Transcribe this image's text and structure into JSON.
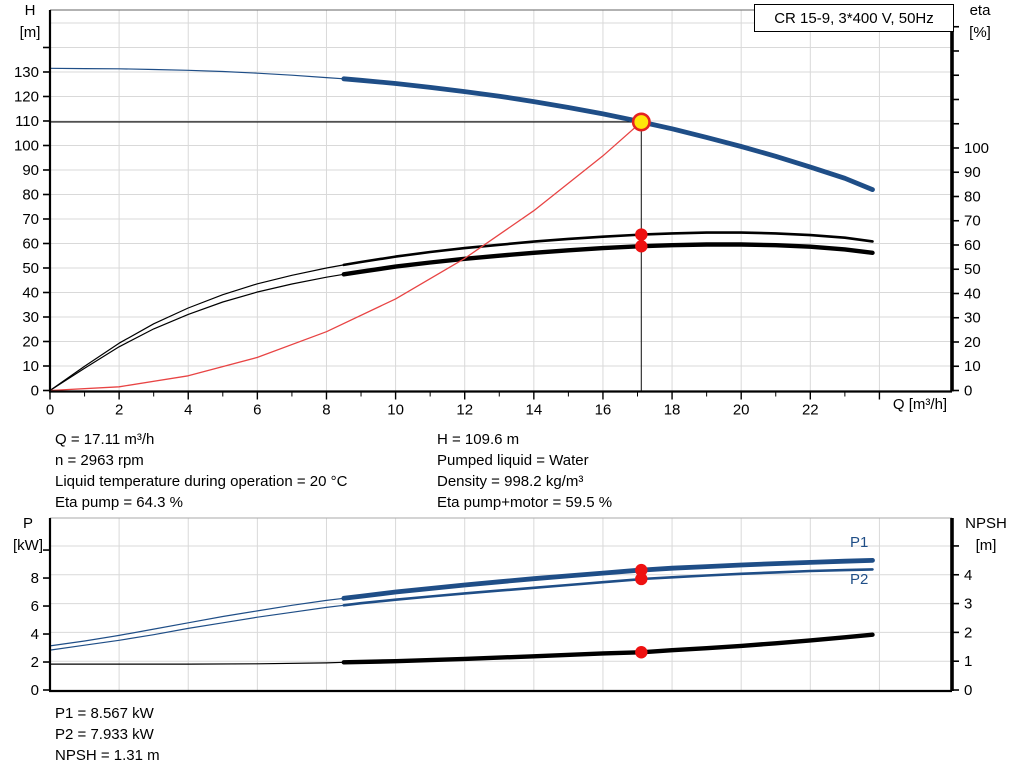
{
  "title_box": {
    "label": "CR 15-9, 3*400 V, 50Hz"
  },
  "axes": {
    "head_title": "H",
    "head_unit": "[m]",
    "eta_title": "eta",
    "eta_unit": "[%]",
    "flow_title": "Q [m³/h]",
    "power_title": "P",
    "power_unit": "[kW]",
    "npsh_title": "NPSH",
    "npsh_unit": "[m]"
  },
  "curve_labels": {
    "p1": "P1",
    "p2": "P2"
  },
  "operating_point": {
    "col_left": [
      "Q = 17.11 m³/h",
      "n = 2963 rpm",
      "Liquid temperature during operation = 20 °C",
      "Eta pump = 64.3 %"
    ],
    "col_right": [
      "H = 109.6 m",
      "Pumped liquid = Water",
      "Density = 998.2 kg/m³",
      "Eta pump+motor = 59.5 %"
    ]
  },
  "power_block": [
    "P1 = 8.567 kW",
    "P2 = 7.933 kW",
    "NPSH = 1.31 m"
  ],
  "colors": {
    "curve_blue": "#1F4E87",
    "curve_black": "#000000",
    "system_red": "#E84444",
    "duty_red": "#EE1111",
    "duty_yellow": "#FFE60A",
    "duty_ring": "#E42222",
    "grid": "#D9D9D9",
    "frame": "#777777"
  },
  "chart_data": [
    {
      "type": "line",
      "title": "CR 15-9, 3*400 V, 50Hz",
      "x_axis": {
        "label": "Q [m³/h]",
        "range": [
          0,
          26.1
        ],
        "labeled_ticks": [
          0,
          2,
          4,
          6,
          8,
          10,
          12,
          14,
          16,
          18,
          20,
          22
        ],
        "unlabeled_ticks": [
          24
        ],
        "minor_ticks": [
          1,
          3,
          5,
          7,
          9,
          11,
          13,
          15,
          17,
          19,
          21,
          23
        ]
      },
      "y_left": {
        "label": "H [m]",
        "range": [
          0,
          155.3
        ],
        "labeled_ticks": [
          0,
          10,
          20,
          30,
          40,
          50,
          60,
          70,
          80,
          90,
          100,
          110,
          120,
          130
        ],
        "unlabeled_ticks": [
          140
        ]
      },
      "y_right": {
        "label": "eta [%]",
        "range": [
          0,
          156.9
        ],
        "labeled_ticks": [
          0,
          10,
          20,
          30,
          40,
          50,
          60,
          70,
          80,
          90,
          100
        ],
        "unlabeled_ticks": [
          110,
          120,
          130,
          140,
          150
        ]
      },
      "duty_point": {
        "q": 17.11,
        "h": 109.6,
        "eta_pump": 64.3,
        "eta_pump_motor": 59.5
      },
      "series": [
        {
          "name": "head-curve",
          "axis": "left",
          "color": "#1F4E87",
          "thick_from": 8.5,
          "thick_width": 4.8,
          "points": [
            [
              0,
              131.5
            ],
            [
              1,
              131.4
            ],
            [
              2,
              131.3
            ],
            [
              3,
              131.0
            ],
            [
              4,
              130.7
            ],
            [
              5,
              130.2
            ],
            [
              6,
              129.5
            ],
            [
              7,
              128.7
            ],
            [
              8,
              127.7
            ],
            [
              8.5,
              127.2
            ],
            [
              9,
              126.6
            ],
            [
              10,
              125.3
            ],
            [
              11,
              123.7
            ],
            [
              12,
              122.0
            ],
            [
              13,
              120.1
            ],
            [
              14,
              117.9
            ],
            [
              15,
              115.5
            ],
            [
              16,
              112.9
            ],
            [
              17,
              110.0
            ],
            [
              17.11,
              109.6
            ],
            [
              18,
              106.8
            ],
            [
              19,
              103.3
            ],
            [
              20,
              99.6
            ],
            [
              21,
              95.6
            ],
            [
              22,
              91.2
            ],
            [
              23,
              86.6
            ],
            [
              23.8,
              82.0
            ]
          ]
        },
        {
          "name": "eta-pump-curve",
          "axis": "right",
          "color": "#000000",
          "thick_from": 8.5,
          "thick_width": 2.6,
          "points": [
            [
              0,
              0
            ],
            [
              1,
              10
            ],
            [
              2,
              19.5
            ],
            [
              3,
              27.5
            ],
            [
              4,
              34
            ],
            [
              5,
              39.5
            ],
            [
              6,
              44
            ],
            [
              7,
              47.5
            ],
            [
              8,
              50.5
            ],
            [
              8.5,
              51.8
            ],
            [
              9,
              53
            ],
            [
              10,
              55.2
            ],
            [
              11,
              57.1
            ],
            [
              12,
              58.7
            ],
            [
              13,
              60.1
            ],
            [
              14,
              61.4
            ],
            [
              15,
              62.5
            ],
            [
              16,
              63.4
            ],
            [
              17,
              64.2
            ],
            [
              17.11,
              64.3
            ],
            [
              18,
              64.8
            ],
            [
              19,
              65.1
            ],
            [
              20,
              65.1
            ],
            [
              21,
              64.8
            ],
            [
              22,
              64.1
            ],
            [
              23,
              63.0
            ],
            [
              23.8,
              61.5
            ]
          ]
        },
        {
          "name": "eta-pump-motor-curve",
          "axis": "right",
          "color": "#000000",
          "thick_from": 8.5,
          "thick_width": 4.4,
          "points": [
            [
              0,
              0
            ],
            [
              1,
              9.2
            ],
            [
              2,
              18
            ],
            [
              3,
              25.4
            ],
            [
              4,
              31.4
            ],
            [
              5,
              36.5
            ],
            [
              6,
              40.6
            ],
            [
              7,
              43.9
            ],
            [
              8,
              46.7
            ],
            [
              8.5,
              47.9
            ],
            [
              9,
              49
            ],
            [
              10,
              51.1
            ],
            [
              11,
              52.8
            ],
            [
              12,
              54.3
            ],
            [
              13,
              55.6
            ],
            [
              14,
              56.8
            ],
            [
              15,
              57.8
            ],
            [
              16,
              58.7
            ],
            [
              17,
              59.4
            ],
            [
              17.11,
              59.5
            ],
            [
              18,
              59.9
            ],
            [
              19,
              60.2
            ],
            [
              20,
              60.2
            ],
            [
              21,
              59.9
            ],
            [
              22,
              59.3
            ],
            [
              23,
              58.2
            ],
            [
              23.8,
              56.8
            ]
          ]
        },
        {
          "name": "system-curve",
          "axis": "left",
          "color": "#E84444",
          "thick_width": 1.3,
          "points": [
            [
              0,
              0
            ],
            [
              2,
              1.5
            ],
            [
              4,
              6.0
            ],
            [
              6,
              13.5
            ],
            [
              8,
              24.0
            ],
            [
              10,
              37.4
            ],
            [
              12,
              53.9
            ],
            [
              14,
              73.4
            ],
            [
              16,
              95.8
            ],
            [
              17.11,
              109.6
            ]
          ]
        }
      ]
    },
    {
      "type": "line",
      "x_axis": {
        "label": "",
        "range": [
          0,
          26.1
        ]
      },
      "y_left": {
        "label": "P [kW]",
        "range": [
          0,
          12.29
        ],
        "labeled_ticks": [
          0,
          2,
          4,
          6,
          8
        ],
        "unlabeled_ticks": [
          10
        ]
      },
      "y_right": {
        "label": "NPSH [m]",
        "range": [
          0,
          5.97
        ],
        "labeled_ticks": [
          0,
          1,
          2,
          3,
          4
        ],
        "unlabeled_ticks": [
          5
        ]
      },
      "duty_point": {
        "q": 17.11,
        "p1": 8.567,
        "p2": 7.933,
        "npsh": 1.31
      },
      "series": [
        {
          "name": "p1-curve",
          "axis": "left",
          "color": "#1F4E87",
          "thick_from": 8.5,
          "thick_width": 4.8,
          "points": [
            [
              0,
              3.15
            ],
            [
              1,
              3.5
            ],
            [
              2,
              3.9
            ],
            [
              3,
              4.35
            ],
            [
              4,
              4.8
            ],
            [
              5,
              5.25
            ],
            [
              6,
              5.65
            ],
            [
              7,
              6.05
            ],
            [
              8,
              6.4
            ],
            [
              8.5,
              6.55
            ],
            [
              9,
              6.7
            ],
            [
              10,
              7.0
            ],
            [
              11,
              7.25
            ],
            [
              12,
              7.5
            ],
            [
              13,
              7.73
            ],
            [
              14,
              7.95
            ],
            [
              15,
              8.15
            ],
            [
              16,
              8.35
            ],
            [
              17,
              8.55
            ],
            [
              17.11,
              8.567
            ],
            [
              18,
              8.7
            ],
            [
              19,
              8.82
            ],
            [
              20,
              8.93
            ],
            [
              21,
              9.03
            ],
            [
              22,
              9.12
            ],
            [
              23,
              9.2
            ],
            [
              23.8,
              9.26
            ]
          ]
        },
        {
          "name": "p2-curve",
          "axis": "left",
          "color": "#1F4E87",
          "thick_from": 8.5,
          "thick_width": 2.6,
          "points": [
            [
              0,
              2.85
            ],
            [
              1,
              3.2
            ],
            [
              2,
              3.55
            ],
            [
              3,
              3.95
            ],
            [
              4,
              4.4
            ],
            [
              5,
              4.8
            ],
            [
              6,
              5.2
            ],
            [
              7,
              5.55
            ],
            [
              8,
              5.9
            ],
            [
              8.5,
              6.05
            ],
            [
              9,
              6.2
            ],
            [
              10,
              6.45
            ],
            [
              11,
              6.68
            ],
            [
              12,
              6.9
            ],
            [
              13,
              7.1
            ],
            [
              14,
              7.3
            ],
            [
              15,
              7.5
            ],
            [
              16,
              7.7
            ],
            [
              17,
              7.9
            ],
            [
              17.11,
              7.933
            ],
            [
              18,
              8.05
            ],
            [
              19,
              8.18
            ],
            [
              20,
              8.3
            ],
            [
              21,
              8.4
            ],
            [
              22,
              8.5
            ],
            [
              23,
              8.57
            ],
            [
              23.8,
              8.62
            ]
          ]
        },
        {
          "name": "npsh-curve",
          "axis": "right",
          "color": "#000000",
          "thick_from": 8.5,
          "thick_width": 4.4,
          "points": [
            [
              0,
              0.9
            ],
            [
              2,
              0.9
            ],
            [
              4,
              0.9
            ],
            [
              6,
              0.91
            ],
            [
              8,
              0.94
            ],
            [
              8.5,
              0.96
            ],
            [
              10,
              1.0
            ],
            [
              12,
              1.08
            ],
            [
              14,
              1.17
            ],
            [
              16,
              1.27
            ],
            [
              17.11,
              1.31
            ],
            [
              18,
              1.38
            ],
            [
              19,
              1.45
            ],
            [
              20,
              1.53
            ],
            [
              21,
              1.62
            ],
            [
              22,
              1.72
            ],
            [
              23,
              1.83
            ],
            [
              23.8,
              1.92
            ]
          ]
        }
      ]
    }
  ]
}
